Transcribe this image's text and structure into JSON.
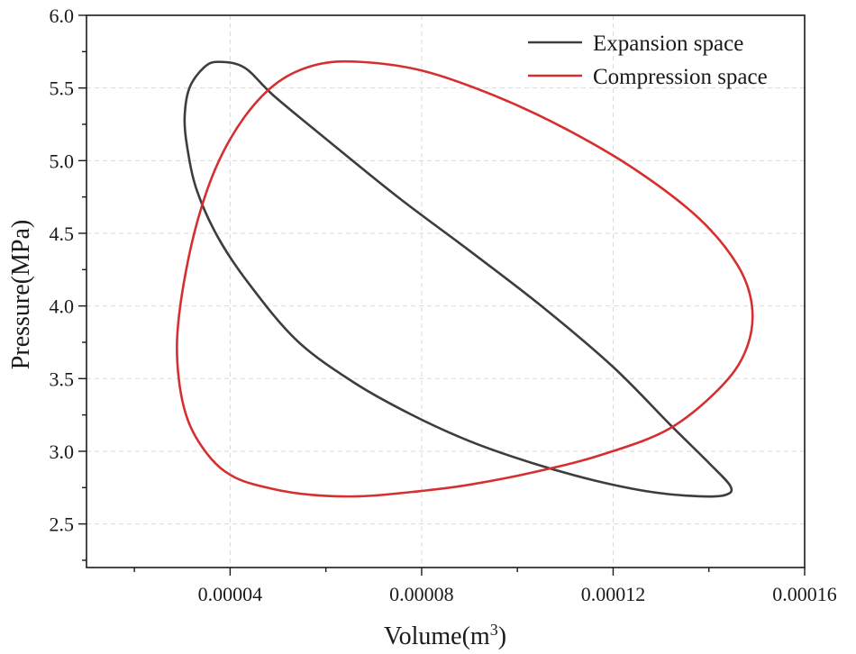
{
  "chart_data": {
    "type": "line",
    "title": "",
    "xlabel": "Volume",
    "xlabel_unit_base": "m",
    "xlabel_unit_exp": "3",
    "ylabel": "Pressure(MPa)",
    "xlim": [
      1e-05,
      0.00016
    ],
    "ylim": [
      2.2,
      6.0
    ],
    "xticks": [
      4e-05,
      8e-05,
      0.00012,
      0.00016
    ],
    "xtick_labels": [
      "0.00004",
      "0.00008",
      "0.00012",
      "0.00016"
    ],
    "xminor_ticks": [
      2e-05,
      6e-05,
      0.0001,
      0.00014
    ],
    "yticks": [
      2.5,
      3.0,
      3.5,
      4.0,
      4.5,
      5.0,
      5.5,
      6.0
    ],
    "ytick_labels": [
      "2.5",
      "3.0",
      "3.5",
      "4.0",
      "4.5",
      "5.0",
      "5.5",
      "6.0"
    ],
    "grid": true,
    "legend_position": "top-right",
    "series": [
      {
        "name": "Expansion space",
        "color": "#3d3d3d",
        "x": [
          3.75e-05,
          4.3e-05,
          4.9e-05,
          6e-05,
          7.5e-05,
          9e-05,
          0.000105,
          0.00012,
          0.000132,
          0.00014,
          0.0001445,
          0.0001435,
          0.000138,
          0.000128,
          0.000116,
          0.000103,
          9e-05,
          7.8e-05,
          6.6e-05,
          5.4e-05,
          4.4e-05,
          3.75e-05,
          3.3e-05,
          3.1e-05,
          3.05e-05,
          3.15e-05,
          3.45e-05,
          3.75e-05
        ],
        "y": [
          5.68,
          5.64,
          5.45,
          5.15,
          4.75,
          4.38,
          4.0,
          3.58,
          3.18,
          2.92,
          2.76,
          2.7,
          2.69,
          2.72,
          2.8,
          2.92,
          3.07,
          3.25,
          3.47,
          3.76,
          4.15,
          4.47,
          4.8,
          5.1,
          5.3,
          5.5,
          5.64,
          5.68
        ]
      },
      {
        "name": "Compression space",
        "color": "#d62f2f",
        "x": [
          6.7e-05,
          8e-05,
          9.5e-05,
          0.00011,
          0.000125,
          0.000138,
          0.000146,
          0.000149,
          0.000148,
          0.000143,
          0.000132,
          0.000118,
          0.000104,
          9e-05,
          7.8e-05,
          6.7e-05,
          5.7e-05,
          4.9e-05,
          4.1e-05,
          3.55e-05,
          3.1e-05,
          2.9e-05,
          2.95e-05,
          3.25e-05,
          3.7e-05,
          4.3e-05,
          5e-05,
          5.8e-05,
          6.7e-05
        ],
        "y": [
          5.68,
          5.62,
          5.45,
          5.22,
          4.93,
          4.6,
          4.28,
          4.0,
          3.72,
          3.46,
          3.16,
          2.98,
          2.86,
          2.77,
          2.72,
          2.69,
          2.7,
          2.74,
          2.82,
          2.97,
          3.23,
          3.6,
          3.98,
          4.5,
          4.95,
          5.3,
          5.54,
          5.66,
          5.68
        ]
      }
    ]
  }
}
